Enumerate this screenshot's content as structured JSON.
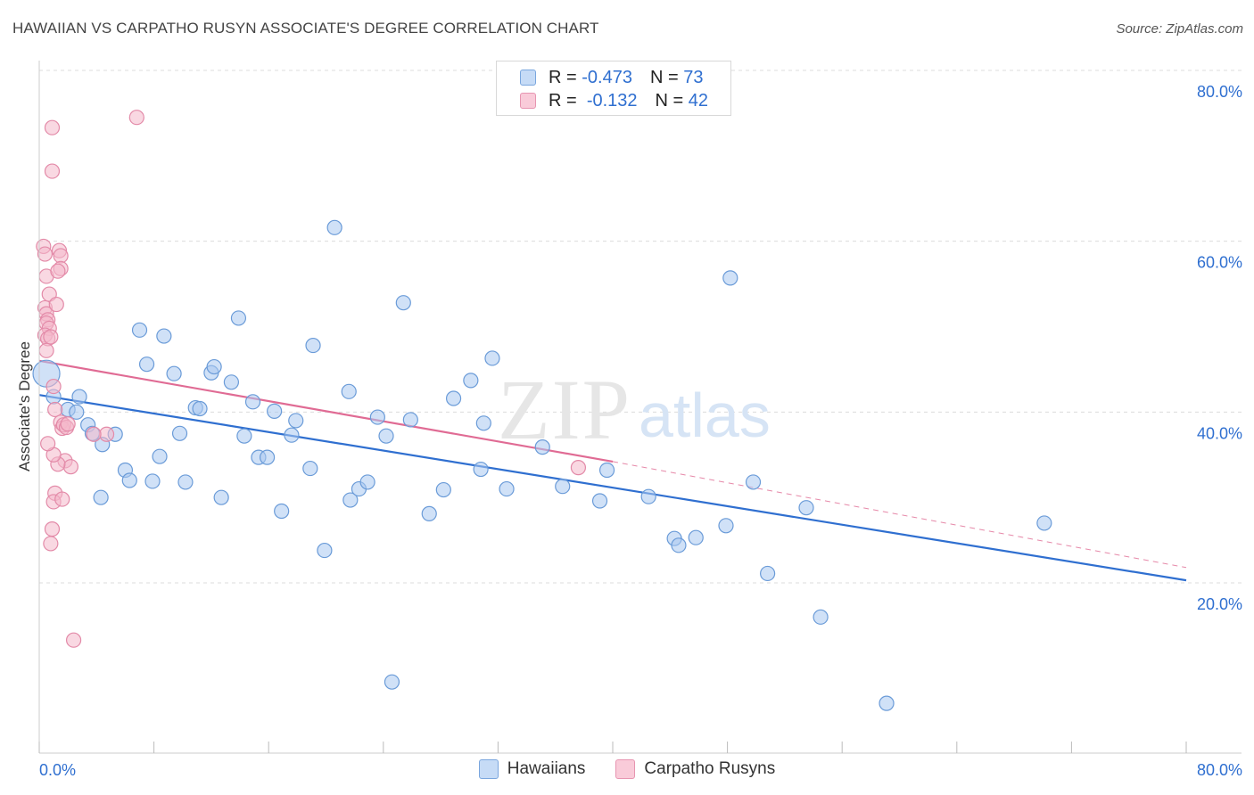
{
  "header": {
    "title": "HAWAIIAN VS CARPATHO RUSYN ASSOCIATE'S DEGREE CORRELATION CHART",
    "source": "Source: ZipAtlas.com"
  },
  "legend": {
    "rows": [
      {
        "r_label": "R =",
        "r_value": "-0.473",
        "n_label": "N =",
        "n_value": "73",
        "color": "#a9c8f0"
      },
      {
        "r_label": "R =",
        "r_value": "-0.132",
        "n_label": "N =",
        "n_value": "42",
        "color": "#f4b8cb"
      }
    ]
  },
  "watermark": {
    "zip": "ZIP",
    "atlas": "atlas"
  },
  "chart_data": {
    "type": "scatter",
    "ylabel": "Associate's Degree",
    "xlim": [
      0,
      80
    ],
    "ylim": [
      0,
      82
    ],
    "x_tick_labels": {
      "left": "0.0%",
      "right": "80.0%"
    },
    "y_ticks": [
      {
        "value": 20,
        "label": "20.0%"
      },
      {
        "value": 40,
        "label": "40.0%"
      },
      {
        "value": 60,
        "label": "60.0%"
      },
      {
        "value": 80,
        "label": "80.0%"
      }
    ],
    "grid": true,
    "legend_position": "top-center",
    "series": [
      {
        "name": "Hawaiians",
        "color": "#a9c8f0",
        "stroke": "#6a9bd8",
        "line_color": "#2f6fd0",
        "trend": {
          "x0": 0,
          "y0": 42.0,
          "x1": 80,
          "y1": 20.3
        },
        "points": [
          [
            0.5,
            44.5
          ],
          [
            1.0,
            41.8
          ],
          [
            2.0,
            40.3
          ],
          [
            2.8,
            41.8
          ],
          [
            3.4,
            38.5
          ],
          [
            2.6,
            40.0
          ],
          [
            3.7,
            37.5
          ],
          [
            5.3,
            37.4
          ],
          [
            4.4,
            36.2
          ],
          [
            4.3,
            30.0
          ],
          [
            6.0,
            33.2
          ],
          [
            6.3,
            32.0
          ],
          [
            7.0,
            49.6
          ],
          [
            7.5,
            45.6
          ],
          [
            7.9,
            31.9
          ],
          [
            8.4,
            34.8
          ],
          [
            8.7,
            48.9
          ],
          [
            9.4,
            44.5
          ],
          [
            9.8,
            37.5
          ],
          [
            10.2,
            31.8
          ],
          [
            10.9,
            40.5
          ],
          [
            11.2,
            40.4
          ],
          [
            12.0,
            44.6
          ],
          [
            12.2,
            45.3
          ],
          [
            12.7,
            30.0
          ],
          [
            13.4,
            43.5
          ],
          [
            13.9,
            51.0
          ],
          [
            14.3,
            37.2
          ],
          [
            14.9,
            41.2
          ],
          [
            15.3,
            34.7
          ],
          [
            15.9,
            34.7
          ],
          [
            16.4,
            40.1
          ],
          [
            16.9,
            28.4
          ],
          [
            17.6,
            37.3
          ],
          [
            17.9,
            39.0
          ],
          [
            18.9,
            33.4
          ],
          [
            19.1,
            47.8
          ],
          [
            19.9,
            23.8
          ],
          [
            20.6,
            61.6
          ],
          [
            21.6,
            42.4
          ],
          [
            21.7,
            29.7
          ],
          [
            22.3,
            31.0
          ],
          [
            22.9,
            31.8
          ],
          [
            23.6,
            39.4
          ],
          [
            24.2,
            37.2
          ],
          [
            24.6,
            8.4
          ],
          [
            25.4,
            52.8
          ],
          [
            25.9,
            39.1
          ],
          [
            27.2,
            28.1
          ],
          [
            28.2,
            30.9
          ],
          [
            28.9,
            41.6
          ],
          [
            30.1,
            43.7
          ],
          [
            30.8,
            33.3
          ],
          [
            31.0,
            38.7
          ],
          [
            31.6,
            46.3
          ],
          [
            32.6,
            31.0
          ],
          [
            35.1,
            35.9
          ],
          [
            36.5,
            31.3
          ],
          [
            39.1,
            29.6
          ],
          [
            39.6,
            33.2
          ],
          [
            42.5,
            30.1
          ],
          [
            44.3,
            25.2
          ],
          [
            44.6,
            24.4
          ],
          [
            45.8,
            25.3
          ],
          [
            47.9,
            26.7
          ],
          [
            48.2,
            55.7
          ],
          [
            49.8,
            31.8
          ],
          [
            50.8,
            21.1
          ],
          [
            53.5,
            28.8
          ],
          [
            54.5,
            16.0
          ],
          [
            59.1,
            5.9
          ],
          [
            70.1,
            27.0
          ]
        ]
      },
      {
        "name": "Carpatho Rusyns",
        "color": "#f4b8cb",
        "stroke": "#e38aa8",
        "line_color": "#e06b94",
        "trend": {
          "x0": 0,
          "y0": 46.0,
          "x1": 40,
          "y1": 34.2
        },
        "trend_ext": {
          "x0": 40,
          "y0": 34.2,
          "x1": 80,
          "y1": 21.8
        },
        "points": [
          [
            0.3,
            59.4
          ],
          [
            0.4,
            58.5
          ],
          [
            0.5,
            55.9
          ],
          [
            0.4,
            52.2
          ],
          [
            0.5,
            51.5
          ],
          [
            0.6,
            50.8
          ],
          [
            0.5,
            50.4
          ],
          [
            0.7,
            49.8
          ],
          [
            0.4,
            49.0
          ],
          [
            0.6,
            48.6
          ],
          [
            0.8,
            48.8
          ],
          [
            0.5,
            47.2
          ],
          [
            0.7,
            53.8
          ],
          [
            1.0,
            43.0
          ],
          [
            1.1,
            40.3
          ],
          [
            1.5,
            38.8
          ],
          [
            1.6,
            38.1
          ],
          [
            1.7,
            38.5
          ],
          [
            1.8,
            34.3
          ],
          [
            2.2,
            33.6
          ],
          [
            1.3,
            33.9
          ],
          [
            1.0,
            35.0
          ],
          [
            0.6,
            36.3
          ],
          [
            1.1,
            30.5
          ],
          [
            1.0,
            29.5
          ],
          [
            1.6,
            29.8
          ],
          [
            0.9,
            26.3
          ],
          [
            0.8,
            24.6
          ],
          [
            2.4,
            13.3
          ],
          [
            0.9,
            73.3
          ],
          [
            0.9,
            68.2
          ],
          [
            6.8,
            74.5
          ],
          [
            1.4,
            58.9
          ],
          [
            1.5,
            58.3
          ],
          [
            1.5,
            56.8
          ],
          [
            1.3,
            56.5
          ],
          [
            1.2,
            52.6
          ],
          [
            4.7,
            37.4
          ],
          [
            3.8,
            37.4
          ],
          [
            37.6,
            33.5
          ],
          [
            1.9,
            38.2
          ],
          [
            2.0,
            38.6
          ]
        ]
      }
    ]
  }
}
